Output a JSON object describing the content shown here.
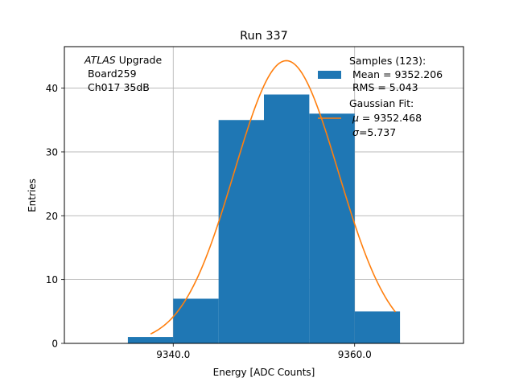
{
  "chart_data": {
    "type": "bar",
    "title": "Run 337",
    "xlabel": "Energy [ADC Counts]",
    "ylabel": "Entries",
    "xlim": [
      9328,
      9372
    ],
    "ylim": [
      0,
      46.5
    ],
    "x_ticks": [
      9340,
      9360
    ],
    "x_tick_labels": [
      "9340.0",
      "9360.0"
    ],
    "y_ticks": [
      0,
      10,
      20,
      30,
      40
    ],
    "y_tick_labels": [
      "0",
      "10",
      "20",
      "30",
      "40"
    ],
    "grid": true,
    "histogram": {
      "bin_edges": [
        9335,
        9340,
        9345,
        9350,
        9355,
        9360,
        9365
      ],
      "counts": [
        1,
        7,
        35,
        39,
        36,
        5
      ],
      "color": "#1f77b4"
    },
    "gaussian_fit": {
      "amplitude": 44.3,
      "mu": 9352.468,
      "sigma": 5.737,
      "x_range": [
        9337.5,
        9364.5
      ],
      "color": "#ff7f0e"
    },
    "annotation": {
      "atlas": "ATLAS",
      "upgrade": " Upgrade",
      "line2": " Board259",
      "line3": " Ch017 35dB"
    },
    "legend": {
      "placement": "upper-right",
      "samples_label": "Samples (123):",
      "samples_mean": " Mean = 9352.206",
      "samples_rms": " RMS = 5.043",
      "fit_label": "Gaussian Fit:",
      "fit_mu": " = 9352.468",
      "fit_sigma": "=5.737",
      "mu_symbol": "μ",
      "sigma_symbol": "σ"
    }
  }
}
